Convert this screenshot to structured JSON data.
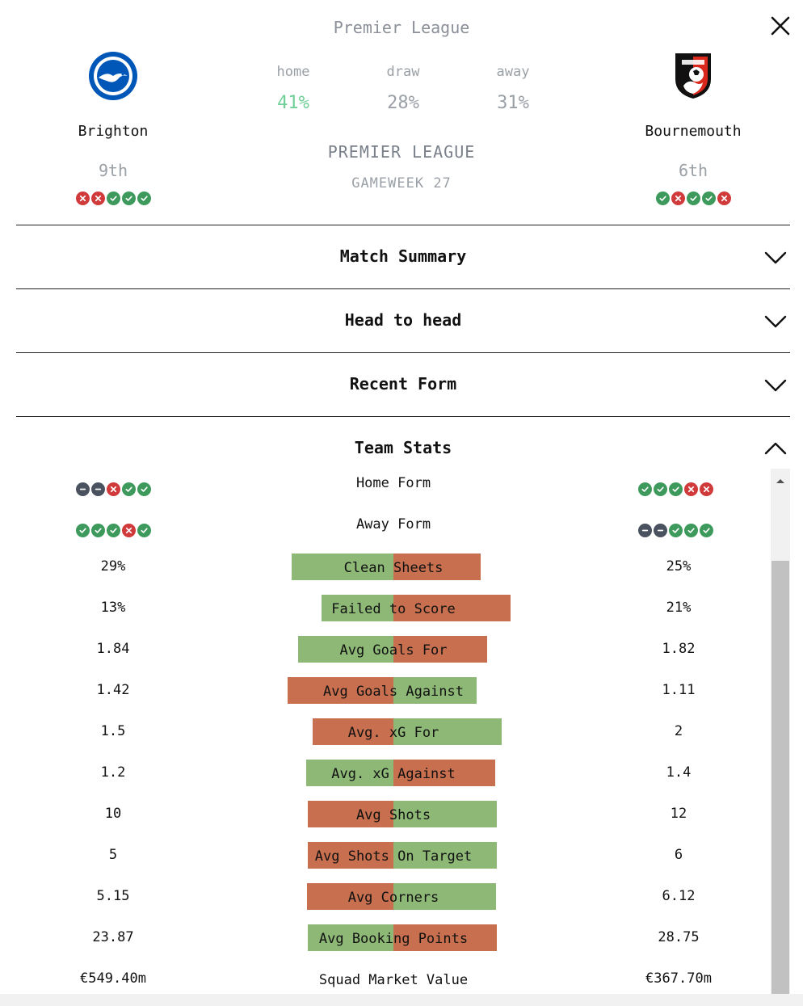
{
  "header": {
    "league_title": "Premier League",
    "competition": "PREMIER LEAGUE",
    "gameweek": "GAMEWEEK 27"
  },
  "home_team": {
    "name": "Brighton",
    "rank": "9th",
    "form": [
      "loss",
      "loss",
      "win",
      "win",
      "win"
    ],
    "colors": {
      "primary": "#0057b8",
      "secondary": "#ffffff"
    }
  },
  "away_team": {
    "name": "Bournemouth",
    "rank": "6th",
    "form": [
      "win",
      "loss",
      "win",
      "win",
      "loss"
    ],
    "colors": {
      "primary": "#da291c",
      "secondary": "#000000"
    }
  },
  "odds": {
    "home_label": "home",
    "home_value": "41%",
    "draw_label": "draw",
    "draw_value": "28%",
    "away_label": "away",
    "away_value": "31%"
  },
  "sections": [
    {
      "title": "Match Summary",
      "expanded": false
    },
    {
      "title": "Head to head",
      "expanded": false
    },
    {
      "title": "Recent Form",
      "expanded": false
    },
    {
      "title": "Team Stats",
      "expanded": true
    }
  ],
  "team_stats": {
    "form_rows": [
      {
        "label": "Home Form",
        "home": [
          "draw",
          "draw",
          "loss",
          "win",
          "win"
        ],
        "away": [
          "win",
          "win",
          "win",
          "loss",
          "loss"
        ]
      },
      {
        "label": "Away Form",
        "home": [
          "win",
          "win",
          "win",
          "loss",
          "win"
        ],
        "away": [
          "draw",
          "draw",
          "win",
          "win",
          "win"
        ]
      }
    ],
    "bar_rows": [
      {
        "label": "Clean Sheets",
        "home": "29%",
        "away": "25%",
        "home_val": 29,
        "away_val": 25,
        "home_better": true
      },
      {
        "label": "Failed to Score",
        "home": "13%",
        "away": "21%",
        "home_val": 13,
        "away_val": 21,
        "home_better": true
      },
      {
        "label": "Avg Goals For",
        "home": "1.84",
        "away": "1.82",
        "home_val": 1.84,
        "away_val": 1.82,
        "home_better": true
      },
      {
        "label": "Avg Goals Against",
        "home": "1.42",
        "away": "1.11",
        "home_val": 1.42,
        "away_val": 1.11,
        "home_better": false
      },
      {
        "label": "Avg. xG For",
        "home": "1.5",
        "away": "2",
        "home_val": 1.5,
        "away_val": 2,
        "home_better": false
      },
      {
        "label": "Avg. xG Against",
        "home": "1.2",
        "away": "1.4",
        "home_val": 1.2,
        "away_val": 1.4,
        "home_better": true
      },
      {
        "label": "Avg Shots",
        "home": "10",
        "away": "12",
        "home_val": 10,
        "away_val": 12,
        "home_better": false
      },
      {
        "label": "Avg Shots On Target",
        "home": "5",
        "away": "6",
        "home_val": 5,
        "away_val": 6,
        "home_better": false
      },
      {
        "label": "Avg Corners",
        "home": "5.15",
        "away": "6.12",
        "home_val": 5.15,
        "away_val": 6.12,
        "home_better": false
      },
      {
        "label": "Avg Booking Points",
        "home": "23.87",
        "away": "28.75",
        "home_val": 23.87,
        "away_val": 28.75,
        "home_better": true
      }
    ],
    "text_rows": [
      {
        "label": "Squad Market Value",
        "home": "€549.40m",
        "away": "€367.70m"
      }
    ]
  },
  "icons": {
    "close": "close-icon",
    "chevron_down": "chevron-down-icon",
    "chevron_up": "chevron-up-icon",
    "win": "check-icon",
    "loss": "cross-icon",
    "draw": "minus-icon"
  },
  "status_colors": {
    "win": "#3e9a5c",
    "loss": "#d03a3a",
    "draw": "#4a5260",
    "better": "#8db876",
    "worse": "#c76f4e"
  }
}
